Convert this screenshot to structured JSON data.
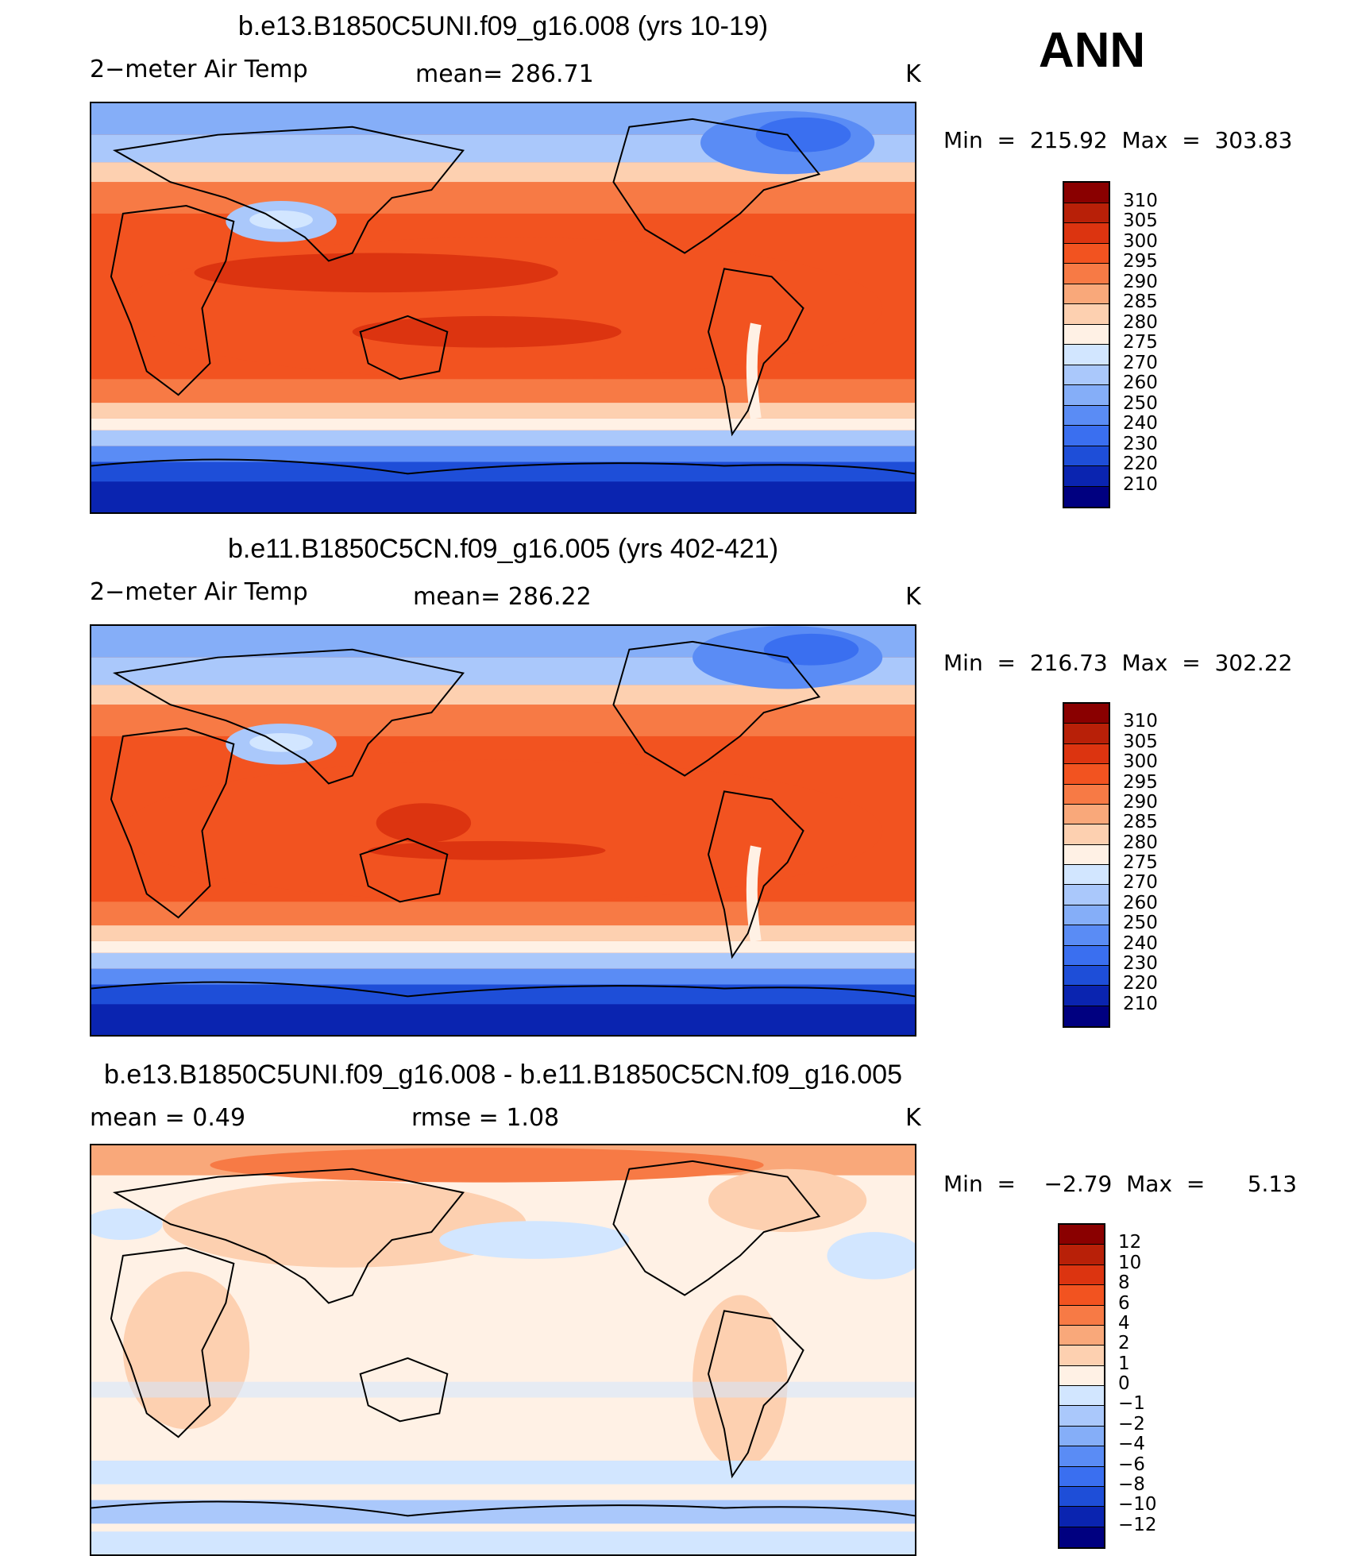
{
  "season": "ANN",
  "colors": {
    "abs": [
      "#000080",
      "#0a24b0",
      "#1e4ed8",
      "#3a6ff0",
      "#5a8cf5",
      "#85aef8",
      "#aac8fb",
      "#d2e6ff",
      "#fff1e5",
      "#fdd0b0",
      "#f9a87a",
      "#f77a45",
      "#f25320",
      "#dc3410",
      "#b82008",
      "#8a0000"
    ],
    "diff": [
      "#000080",
      "#0a24b0",
      "#1e4ed8",
      "#3a6ff0",
      "#5a8cf5",
      "#85aef8",
      "#aac8fb",
      "#d2e6ff",
      "#fff1e5",
      "#fdd0b0",
      "#f9a87a",
      "#f77a45",
      "#f25320",
      "#dc3410",
      "#b82008",
      "#8a0000"
    ]
  },
  "panels": [
    {
      "title": "b.e13.B1850C5UNI.f09_g16.008 (yrs 10-19)",
      "left_label": "2−meter Air Temp",
      "center_label": "mean=  286.71",
      "units": "K",
      "minmax": "Min  =  215.92  Max  =  303.83",
      "scale": "abs",
      "levels": [
        "310",
        "305",
        "300",
        "295",
        "290",
        "285",
        "280",
        "275",
        "270",
        "260",
        "250",
        "240",
        "230",
        "220",
        "210"
      ]
    },
    {
      "title": "b.e11.B1850C5CN.f09_g16.005 (yrs 402-421)",
      "left_label": "2−meter Air Temp",
      "center_label": "mean=  286.22",
      "units": "K",
      "minmax": "Min  =  216.73  Max  =  302.22",
      "scale": "abs",
      "levels": [
        "310",
        "305",
        "300",
        "295",
        "290",
        "285",
        "280",
        "275",
        "270",
        "260",
        "250",
        "240",
        "230",
        "220",
        "210"
      ]
    },
    {
      "title": "b.e13.B1850C5UNI.f09_g16.008 - b.e11.B1850C5CN.f09_g16.005",
      "left_label": "mean  =     0.49",
      "center_label": "rmse  =     1.08",
      "units": "K",
      "minmax": "Min  =    −2.79  Max  =      5.13",
      "scale": "diff",
      "levels": [
        "12",
        "10",
        "8",
        "6",
        "4",
        "2",
        "1",
        "0",
        "−1",
        "−2",
        "−4",
        "−6",
        "−8",
        "−10",
        "−12"
      ]
    }
  ]
}
